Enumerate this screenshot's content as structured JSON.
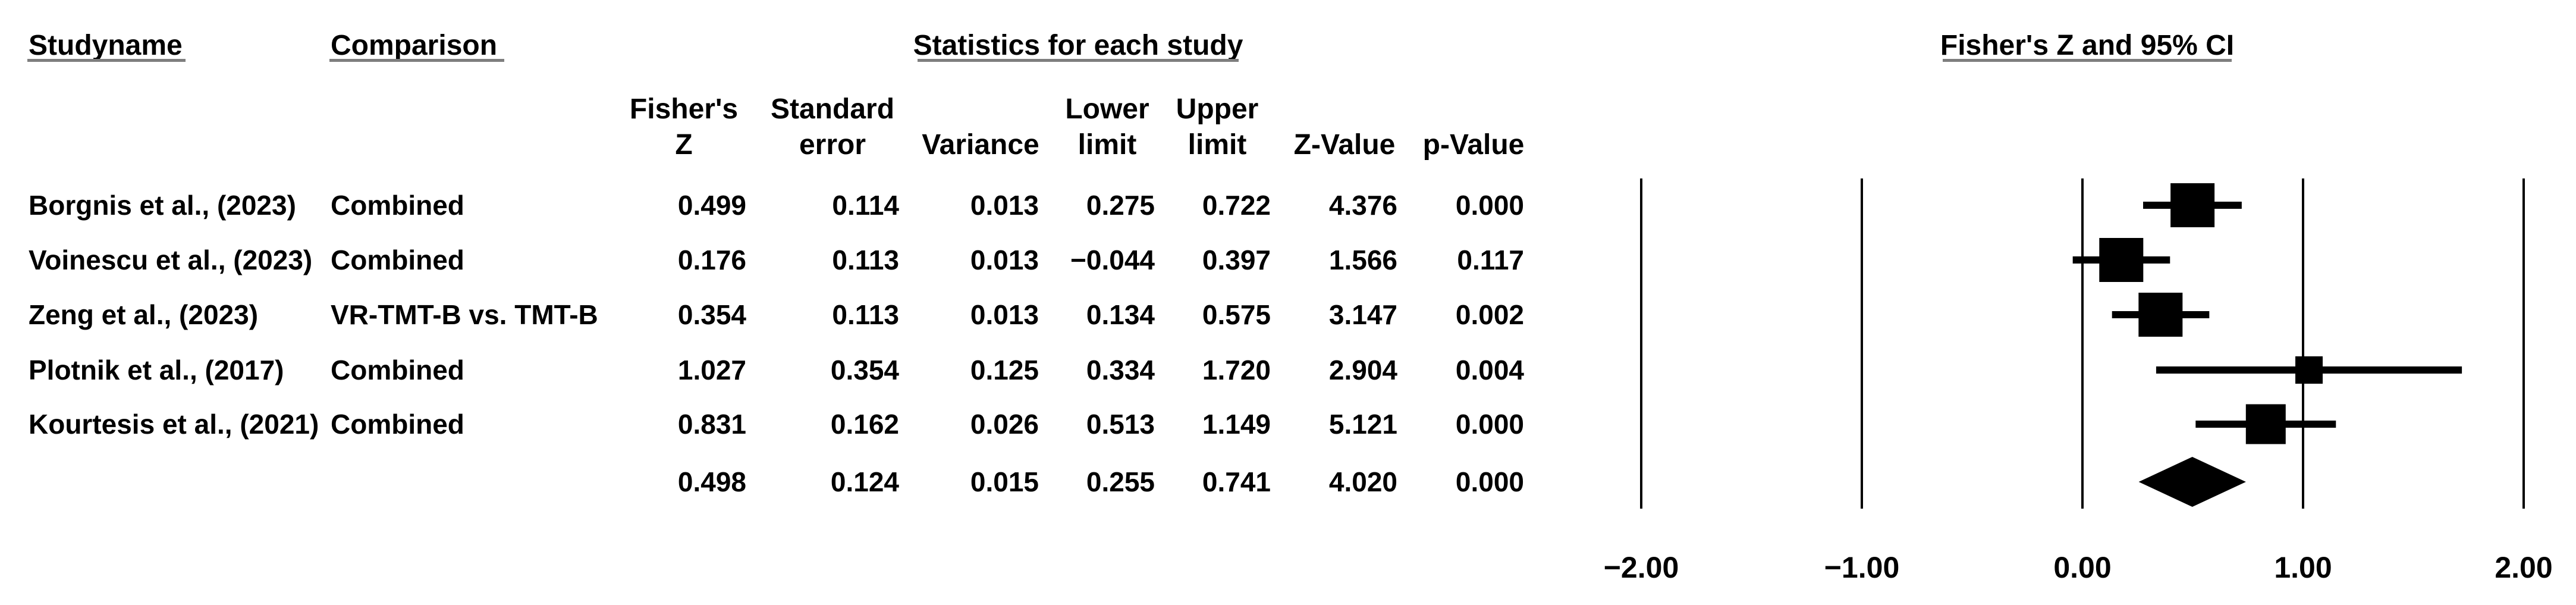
{
  "headers": {
    "study": "Studyname",
    "comparison": "Comparison",
    "stats_group": "Statistics for each study",
    "plot_group": "Fisher's Z and 95% CI",
    "stat_cols": [
      {
        "line1": "Fisher's",
        "line2": "Z"
      },
      {
        "line1": "Standard",
        "line2": "error"
      },
      {
        "line1": "",
        "line2": "Variance"
      },
      {
        "line1": "Lower",
        "line2": "limit"
      },
      {
        "line1": "Upper",
        "line2": "limit"
      },
      {
        "line1": "",
        "line2": "Z-Value"
      },
      {
        "line1": "",
        "line2": "p-Value"
      }
    ]
  },
  "chart_data": {
    "type": "forest",
    "effect_measure": "Fisher's Z",
    "xlim": [
      -2,
      2
    ],
    "grid": true,
    "ticks": [
      {
        "value": -2,
        "label": "−2.00"
      },
      {
        "value": -1,
        "label": "−1.00"
      },
      {
        "value": 0,
        "label": "0.00"
      },
      {
        "value": 1,
        "label": "1.00"
      },
      {
        "value": 2,
        "label": "2.00"
      }
    ],
    "studies": [
      {
        "study": "Borgnis et al., (2023)",
        "comparison": "Combined",
        "fishers_z": "0.499",
        "standard_error": "0.114",
        "variance": "0.013",
        "lower_limit": "0.275",
        "upper_limit": "0.722",
        "z_value": "4.376",
        "p_value": "0.000",
        "point": 0.499,
        "lower": 0.275,
        "upper": 0.722,
        "marker": "square",
        "marker_px": 74
      },
      {
        "study": "Voinescu et al., (2023)",
        "comparison": "Combined",
        "fishers_z": "0.176",
        "standard_error": "0.113",
        "variance": "0.013",
        "lower_limit": "−0.044",
        "upper_limit": "0.397",
        "z_value": "1.566",
        "p_value": "0.117",
        "point": 0.176,
        "lower": -0.044,
        "upper": 0.397,
        "marker": "square",
        "marker_px": 74
      },
      {
        "study": "Zeng et al., (2023)",
        "comparison": "VR-TMT-B vs. TMT-B",
        "fishers_z": "0.354",
        "standard_error": "0.113",
        "variance": "0.013",
        "lower_limit": "0.134",
        "upper_limit": "0.575",
        "z_value": "3.147",
        "p_value": "0.002",
        "point": 0.354,
        "lower": 0.134,
        "upper": 0.575,
        "marker": "square",
        "marker_px": 74
      },
      {
        "study": "Plotnik et al., (2017)",
        "comparison": "Combined",
        "fishers_z": "1.027",
        "standard_error": "0.354",
        "variance": "0.125",
        "lower_limit": "0.334",
        "upper_limit": "1.720",
        "z_value": "2.904",
        "p_value": "0.004",
        "point": 1.027,
        "lower": 0.334,
        "upper": 1.72,
        "marker": "square",
        "marker_px": 46
      },
      {
        "study": "Kourtesis et al., (2021)",
        "comparison": "Combined",
        "fishers_z": "0.831",
        "standard_error": "0.162",
        "variance": "0.026",
        "lower_limit": "0.513",
        "upper_limit": "1.149",
        "z_value": "5.121",
        "p_value": "0.000",
        "point": 0.831,
        "lower": 0.513,
        "upper": 1.149,
        "marker": "square",
        "marker_px": 67
      },
      {
        "study": "",
        "comparison": "",
        "fishers_z": "0.498",
        "standard_error": "0.124",
        "variance": "0.015",
        "lower_limit": "0.255",
        "upper_limit": "0.741",
        "z_value": "4.020",
        "p_value": "0.000",
        "point": 0.498,
        "lower": 0.255,
        "upper": 0.741,
        "marker": "diamond",
        "marker_px": 84
      }
    ]
  }
}
